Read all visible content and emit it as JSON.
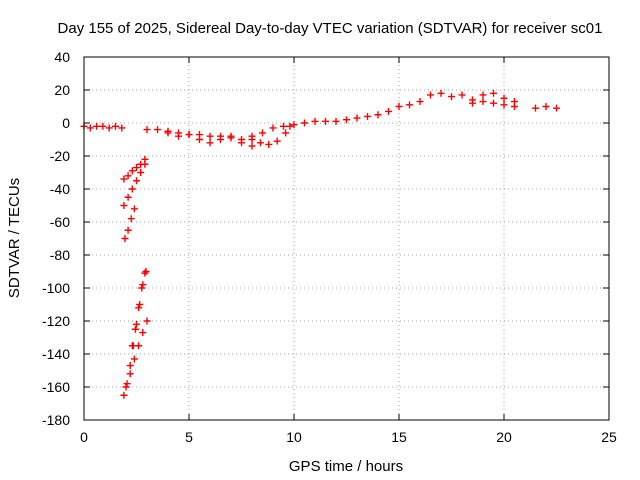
{
  "chart_data": {
    "type": "scatter",
    "title": "Day 155 of 2025, Sidereal Day-to-day VTEC variation (SDTVAR) for receiver sc01",
    "xlabel": "GPS time / hours",
    "ylabel": "SDTVAR / TECUs",
    "xlim": [
      0,
      25
    ],
    "ylim": [
      -180,
      40
    ],
    "xticks": [
      0,
      5,
      10,
      15,
      20,
      25
    ],
    "yticks": [
      -180,
      -160,
      -140,
      -120,
      -100,
      -80,
      -60,
      -40,
      -20,
      0,
      20,
      40
    ],
    "grid": true,
    "marker": "plus",
    "color": "#ff0000",
    "series": [
      {
        "name": "early-flat",
        "x": [
          0.0,
          0.3,
          0.6,
          0.9,
          1.2,
          1.5,
          1.8
        ],
        "y": [
          -2,
          -3,
          -2,
          -2,
          -3,
          -2,
          -3
        ]
      },
      {
        "name": "drop-1",
        "x": [
          1.9,
          2.1,
          2.3,
          2.5,
          2.7,
          2.9
        ],
        "y": [
          -34,
          -32,
          -29,
          -27,
          -25,
          -22
        ]
      },
      {
        "name": "drop-2",
        "x": [
          1.9,
          2.1,
          2.3,
          2.5,
          2.7,
          2.9
        ],
        "y": [
          -50,
          -45,
          -40,
          -35,
          -30,
          -25
        ]
      },
      {
        "name": "drop-3",
        "x": [
          1.95,
          2.1,
          2.25,
          2.4
        ],
        "y": [
          -70,
          -65,
          -58,
          -52
        ]
      },
      {
        "name": "drop-4",
        "x": [
          1.9,
          2.05,
          2.2,
          2.35,
          2.5,
          2.65,
          2.8,
          2.95
        ],
        "y": [
          -165,
          -158,
          -147,
          -135,
          -122,
          -110,
          -98,
          -90
        ]
      },
      {
        "name": "drop-5",
        "x": [
          2.0,
          2.2,
          2.4,
          2.6,
          2.8,
          3.0
        ],
        "y": [
          -160,
          -152,
          -143,
          -135,
          -127,
          -120
        ]
      },
      {
        "name": "drop-6",
        "x": [
          2.3,
          2.45,
          2.6,
          2.75,
          2.9
        ],
        "y": [
          -135,
          -125,
          -112,
          -100,
          -91
        ]
      },
      {
        "name": "dip",
        "x": [
          3.0,
          3.5,
          4.0,
          4.5,
          5.0,
          5.5,
          6.0,
          6.5,
          7.0,
          7.5
        ],
        "y": [
          -4,
          -4,
          -5,
          -6,
          -7,
          -7,
          -8,
          -8,
          -9,
          -10
        ]
      },
      {
        "name": "dip-lower",
        "x": [
          4.0,
          4.5,
          5.0,
          5.5,
          6.0,
          6.5,
          7.0,
          7.5,
          8.0
        ],
        "y": [
          -6,
          -8,
          -7,
          -10,
          -12,
          -10,
          -8,
          -12,
          -14
        ]
      },
      {
        "name": "arc",
        "x": [
          8.0,
          8.4,
          8.8,
          9.2,
          9.6,
          9.8
        ],
        "y": [
          -8,
          -12,
          -13,
          -11,
          -6,
          -2
        ]
      },
      {
        "name": "rise",
        "x": [
          8.0,
          8.5,
          9.0,
          9.5,
          10.0,
          10.5,
          11.0,
          11.5,
          12.0,
          12.5,
          13.0,
          13.5,
          14.0,
          14.5,
          15.0,
          15.5,
          16.0,
          16.5,
          17.0,
          17.5,
          18.0
        ],
        "y": [
          -10,
          -6,
          -3,
          -2,
          -1,
          0,
          1,
          1,
          1,
          2,
          3,
          4,
          5,
          7,
          10,
          11,
          13,
          17,
          18,
          16,
          17
        ]
      },
      {
        "name": "late",
        "x": [
          18.5,
          19.0,
          19.5,
          20.0,
          20.5
        ],
        "y": [
          14,
          17,
          18,
          15,
          13
        ]
      },
      {
        "name": "late-lower",
        "x": [
          18.5,
          19.0,
          19.5,
          20.0,
          20.5
        ],
        "y": [
          12,
          13,
          12,
          11,
          10
        ]
      },
      {
        "name": "tail",
        "x": [
          21.5,
          22.0,
          22.5
        ],
        "y": [
          9,
          10,
          9
        ]
      }
    ]
  }
}
